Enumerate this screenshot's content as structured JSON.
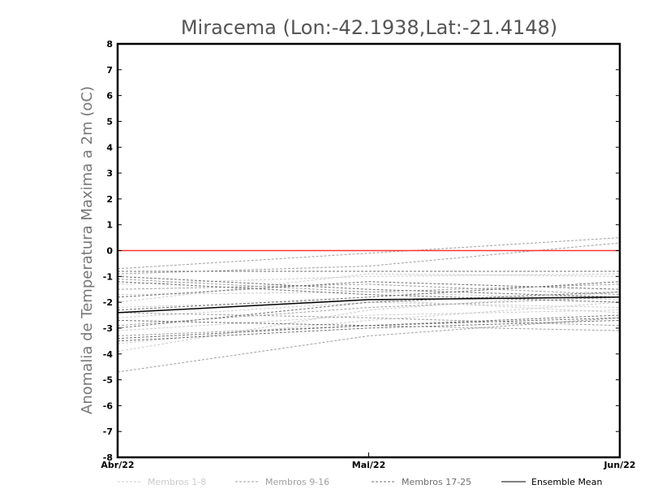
{
  "chart_data": {
    "type": "line",
    "title": "Miracema (Lon:-42.1938,Lat:-21.4148)",
    "xlabel": "",
    "ylabel": "Anomalia de Temperatura Maxima a 2m (oC)",
    "categories": [
      "Abr/22",
      "Mai/22",
      "Jun/22"
    ],
    "ylim": [
      -8,
      8
    ],
    "yticks": [
      "8",
      "7",
      "6",
      "5",
      "4",
      "3",
      "2",
      "1",
      "0",
      "-1",
      "-2",
      "-3",
      "-4",
      "-5",
      "-6",
      "-7",
      "-8"
    ],
    "reference_line": {
      "y": 0,
      "color": "#ff3333"
    },
    "grid": false,
    "legend_position": "bottom",
    "legend": [
      {
        "label": "Membros 1-8",
        "color": "#cccccc",
        "dashed": true
      },
      {
        "label": "Membros 9-16",
        "color": "#a0a0a0",
        "dashed": true
      },
      {
        "label": "Membros 17-25",
        "color": "#707070",
        "dashed": true
      },
      {
        "label": "Ensemble Mean",
        "color": "#000000",
        "dashed": false
      }
    ],
    "series": [
      {
        "group": "Membros 1-8",
        "values": [
          -2.0,
          -0.9,
          -1.0
        ]
      },
      {
        "group": "Membros 1-8",
        "values": [
          -1.7,
          -1.6,
          -1.9
        ]
      },
      {
        "group": "Membros 1-8",
        "values": [
          -2.6,
          -2.0,
          -2.2
        ]
      },
      {
        "group": "Membros 1-8",
        "values": [
          -3.1,
          -2.5,
          -2.3
        ]
      },
      {
        "group": "Membros 1-8",
        "values": [
          -3.6,
          -2.7,
          -2.0
        ]
      },
      {
        "group": "Membros 1-8",
        "values": [
          -2.2,
          -1.9,
          -2.4
        ]
      },
      {
        "group": "Membros 1-8",
        "values": [
          -3.9,
          -2.3,
          -1.6
        ]
      },
      {
        "group": "Membros 1-8",
        "values": [
          -1.3,
          -1.0,
          -0.9
        ]
      },
      {
        "group": "Membros 9-16",
        "values": [
          -0.7,
          -0.1,
          0.5
        ]
      },
      {
        "group": "Membros 9-16",
        "values": [
          -4.7,
          -3.3,
          -2.6
        ]
      },
      {
        "group": "Membros 9-16",
        "values": [
          -1.1,
          -1.6,
          -1.3
        ]
      },
      {
        "group": "Membros 9-16",
        "values": [
          -2.9,
          -2.2,
          -1.8
        ]
      },
      {
        "group": "Membros 9-16",
        "values": [
          -3.3,
          -2.9,
          -3.1
        ]
      },
      {
        "group": "Membros 9-16",
        "values": [
          -0.9,
          -0.6,
          0.3
        ]
      },
      {
        "group": "Membros 9-16",
        "values": [
          -2.4,
          -2.6,
          -2.9
        ]
      },
      {
        "group": "Membros 9-16",
        "values": [
          -1.5,
          -1.3,
          -1.7
        ]
      },
      {
        "group": "Membros 17-25",
        "values": [
          -0.8,
          -0.8,
          -0.8
        ]
      },
      {
        "group": "Membros 17-25",
        "values": [
          -1.0,
          -1.5,
          -1.8
        ]
      },
      {
        "group": "Membros 17-25",
        "values": [
          -3.0,
          -2.0,
          -1.6
        ]
      },
      {
        "group": "Membros 17-25",
        "values": [
          -3.4,
          -2.9,
          -2.5
        ]
      },
      {
        "group": "Membros 17-25",
        "values": [
          -1.8,
          -1.2,
          -1.5
        ]
      },
      {
        "group": "Membros 17-25",
        "values": [
          -3.5,
          -3.0,
          -2.7
        ]
      },
      {
        "group": "Membros 17-25",
        "values": [
          -2.7,
          -2.9,
          -2.6
        ]
      },
      {
        "group": "Membros 17-25",
        "values": [
          -1.2,
          -1.7,
          -2.0
        ]
      },
      {
        "group": "Membros 17-25",
        "values": [
          -2.3,
          -1.8,
          -1.2
        ]
      },
      {
        "group": "Ensemble Mean",
        "values": [
          -2.4,
          -1.9,
          -1.8
        ]
      }
    ]
  }
}
